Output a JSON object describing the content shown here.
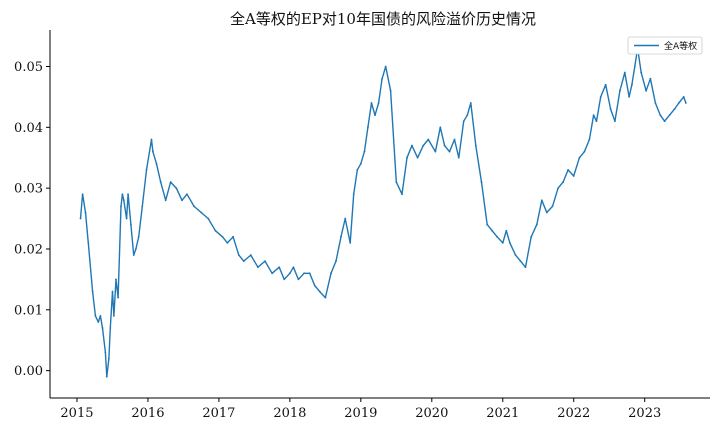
{
  "chart_data": {
    "type": "line",
    "title": "全A等权的EP对10年国债的风险溢价历史情况",
    "xlabel": "",
    "ylabel": "",
    "x_ticks": [
      "2015",
      "2016",
      "2017",
      "2018",
      "2019",
      "2020",
      "2021",
      "2022",
      "2023"
    ],
    "y_ticks": [
      "0.00",
      "0.01",
      "0.02",
      "0.03",
      "0.04",
      "0.05"
    ],
    "xlim": [
      2014.62,
      2023.92
    ],
    "ylim": [
      -0.0045,
      0.056
    ],
    "grid": false,
    "legend_position": "top-right",
    "colors": {
      "series": "#1f77b4",
      "axis": "#000000"
    },
    "series": [
      {
        "name": "全A等权",
        "x": [
          2015.05,
          2015.08,
          2015.12,
          2015.16,
          2015.22,
          2015.26,
          2015.3,
          2015.33,
          2015.36,
          2015.4,
          2015.42,
          2015.45,
          2015.47,
          2015.5,
          2015.52,
          2015.55,
          2015.58,
          2015.62,
          2015.64,
          2015.66,
          2015.7,
          2015.72,
          2015.76,
          2015.8,
          2015.83,
          2015.87,
          2015.92,
          2015.98,
          2016.05,
          2016.07,
          2016.12,
          2016.18,
          2016.25,
          2016.32,
          2016.4,
          2016.48,
          2016.55,
          2016.65,
          2016.75,
          2016.85,
          2016.95,
          2017.05,
          2017.12,
          2017.2,
          2017.28,
          2017.35,
          2017.45,
          2017.55,
          2017.65,
          2017.75,
          2017.85,
          2017.92,
          2018.0,
          2018.05,
          2018.12,
          2018.2,
          2018.28,
          2018.35,
          2018.42,
          2018.5,
          2018.58,
          2018.65,
          2018.72,
          2018.78,
          2018.85,
          2018.9,
          2018.95,
          2019.0,
          2019.05,
          2019.1,
          2019.15,
          2019.2,
          2019.25,
          2019.3,
          2019.35,
          2019.42,
          2019.5,
          2019.58,
          2019.65,
          2019.72,
          2019.8,
          2019.88,
          2019.95,
          2020.05,
          2020.12,
          2020.18,
          2020.25,
          2020.32,
          2020.38,
          2020.45,
          2020.5,
          2020.55,
          2020.62,
          2020.7,
          2020.78,
          2020.85,
          2020.92,
          2021.0,
          2021.05,
          2021.1,
          2021.18,
          2021.25,
          2021.32,
          2021.4,
          2021.48,
          2021.55,
          2021.62,
          2021.7,
          2021.78,
          2021.85,
          2021.92,
          2022.0,
          2022.08,
          2022.15,
          2022.22,
          2022.28,
          2022.32,
          2022.38,
          2022.45,
          2022.52,
          2022.58,
          2022.65,
          2022.72,
          2022.78,
          2022.82,
          2022.86,
          2022.9,
          2022.95,
          2023.02,
          2023.08,
          2023.15,
          2023.22,
          2023.28,
          2023.35,
          2023.42,
          2023.48,
          2023.55,
          2023.58
        ],
        "values": [
          0.025,
          0.029,
          0.026,
          0.021,
          0.013,
          0.009,
          0.008,
          0.009,
          0.007,
          0.003,
          -0.001,
          0.002,
          0.007,
          0.013,
          0.009,
          0.015,
          0.012,
          0.027,
          0.029,
          0.028,
          0.025,
          0.029,
          0.024,
          0.019,
          0.02,
          0.022,
          0.027,
          0.033,
          0.038,
          0.036,
          0.034,
          0.031,
          0.028,
          0.031,
          0.03,
          0.028,
          0.029,
          0.027,
          0.026,
          0.025,
          0.023,
          0.022,
          0.021,
          0.022,
          0.019,
          0.018,
          0.019,
          0.017,
          0.018,
          0.016,
          0.017,
          0.015,
          0.016,
          0.017,
          0.015,
          0.016,
          0.016,
          0.014,
          0.013,
          0.012,
          0.016,
          0.018,
          0.022,
          0.025,
          0.021,
          0.029,
          0.033,
          0.034,
          0.036,
          0.04,
          0.044,
          0.042,
          0.044,
          0.048,
          0.05,
          0.046,
          0.031,
          0.029,
          0.035,
          0.037,
          0.035,
          0.037,
          0.038,
          0.036,
          0.04,
          0.037,
          0.036,
          0.038,
          0.035,
          0.041,
          0.042,
          0.044,
          0.037,
          0.031,
          0.024,
          0.023,
          0.022,
          0.021,
          0.023,
          0.021,
          0.019,
          0.018,
          0.017,
          0.022,
          0.024,
          0.028,
          0.026,
          0.027,
          0.03,
          0.031,
          0.033,
          0.032,
          0.035,
          0.036,
          0.038,
          0.042,
          0.041,
          0.045,
          0.047,
          0.043,
          0.041,
          0.046,
          0.049,
          0.045,
          0.047,
          0.05,
          0.053,
          0.049,
          0.046,
          0.048,
          0.044,
          0.042,
          0.041,
          0.042,
          0.043,
          0.044,
          0.045,
          0.044
        ]
      }
    ]
  }
}
